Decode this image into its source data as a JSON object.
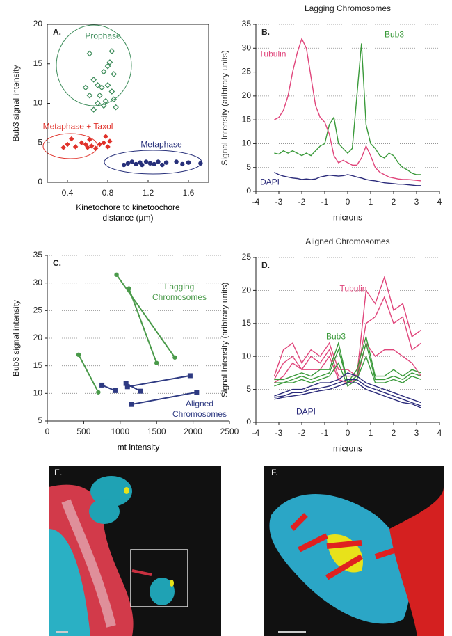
{
  "chart_data": [
    {
      "type": "scatter",
      "panel_label": "A.",
      "xlabel": "Kinetochore to kinetoochore distance (µm)",
      "ylabel": "Bub3 signal intensity",
      "xlim": [
        0.2,
        1.8
      ],
      "xticks": [
        0.4,
        0.8,
        1.2,
        1.6
      ],
      "ylim": [
        0,
        20
      ],
      "yticks": [
        0,
        5,
        10,
        15,
        20
      ],
      "series": [
        {
          "name": "Prophase",
          "color": "#3d8c5a",
          "marker": "diamond-open",
          "x": [
            0.62,
            0.84,
            0.82,
            0.8,
            0.76,
            0.66,
            0.86,
            0.7,
            0.58,
            0.74,
            0.8,
            0.84,
            0.62,
            0.72,
            0.78,
            0.86,
            0.7,
            0.76,
            0.88,
            0.66
          ],
          "values": [
            16.3,
            16.6,
            15.2,
            14.7,
            14.0,
            13.0,
            13.7,
            12.3,
            12.0,
            12.0,
            12.3,
            11.5,
            11.0,
            11.0,
            10.3,
            10.5,
            10.0,
            9.7,
            9.5,
            9.2
          ]
        },
        {
          "name": "Metaphase + Taxol",
          "color": "#e0312a",
          "marker": "diamond",
          "x": [
            0.36,
            0.4,
            0.44,
            0.48,
            0.54,
            0.58,
            0.6,
            0.62,
            0.64,
            0.68,
            0.72,
            0.76,
            0.78,
            0.8,
            0.82
          ],
          "values": [
            4.4,
            4.8,
            5.5,
            4.5,
            5.0,
            4.8,
            4.4,
            5.4,
            4.6,
            4.3,
            4.8,
            5.0,
            5.8,
            4.5,
            5.2
          ]
        },
        {
          "name": "Metaphase",
          "color": "#27307a",
          "marker": "circle",
          "x": [
            0.96,
            1.0,
            1.04,
            1.08,
            1.12,
            1.14,
            1.18,
            1.22,
            1.26,
            1.3,
            1.34,
            1.38,
            1.48,
            1.54,
            1.6,
            1.72
          ],
          "values": [
            2.2,
            2.4,
            2.6,
            2.3,
            2.5,
            2.2,
            2.6,
            2.4,
            2.3,
            2.6,
            2.2,
            2.5,
            2.6,
            2.3,
            2.5,
            2.4
          ]
        }
      ]
    },
    {
      "type": "line",
      "title": "Lagging Chromosomes",
      "panel_label": "B.",
      "xlabel": "microns",
      "ylabel": "Signal Intensity (aribtrary units)",
      "xlim": [
        -4,
        4
      ],
      "xticks": [
        -4,
        -3,
        -2,
        -1,
        0,
        1,
        2,
        3,
        4
      ],
      "ylim": [
        0,
        35
      ],
      "yticks": [
        0,
        5,
        10,
        15,
        20,
        25,
        30,
        35
      ],
      "grid": true,
      "x": [
        -3.2,
        -3.0,
        -2.8,
        -2.6,
        -2.4,
        -2.2,
        -2.0,
        -1.8,
        -1.6,
        -1.4,
        -1.2,
        -1.0,
        -0.8,
        -0.6,
        -0.4,
        -0.2,
        0,
        0.2,
        0.4,
        0.6,
        0.8,
        1.0,
        1.2,
        1.4,
        1.6,
        1.8,
        2.0,
        2.2,
        2.4,
        2.6,
        2.8,
        3.0,
        3.2
      ],
      "series": [
        {
          "name": "Tubulin",
          "color": "#e0457b",
          "values": [
            15,
            15.5,
            17,
            20,
            25,
            29,
            32,
            30,
            24,
            18,
            15.5,
            14.5,
            12,
            7.5,
            6,
            6.5,
            6,
            5.5,
            5.5,
            7,
            9.5,
            7.5,
            5,
            4,
            3.5,
            3,
            2.8,
            2.6,
            2.5,
            2.5,
            2.4,
            2.3,
            2.2
          ]
        },
        {
          "name": "Bub3",
          "color": "#3a9a3a",
          "values": [
            8,
            7.8,
            8.5,
            8,
            8.5,
            8,
            7.5,
            8,
            7.5,
            8.5,
            9.5,
            10,
            14,
            15.5,
            10,
            9,
            8,
            9,
            20,
            31,
            14,
            10,
            9,
            7.5,
            7,
            8,
            7.5,
            6,
            5,
            4.5,
            3.8,
            3.5,
            3.5
          ]
        },
        {
          "name": "DAPI",
          "color": "#2a2a7a",
          "values": [
            4,
            3.5,
            3.2,
            3,
            2.8,
            2.7,
            2.5,
            2.6,
            2.5,
            2.6,
            3,
            3.2,
            3.4,
            3.3,
            3.2,
            3.3,
            3.5,
            3.3,
            3,
            2.8,
            2.5,
            2.3,
            2.2,
            2,
            1.8,
            1.7,
            1.6,
            1.5,
            1.5,
            1.4,
            1.3,
            1.2,
            1.2
          ]
        }
      ]
    },
    {
      "type": "line",
      "panel_label": "C.",
      "xlabel": "mt intensity",
      "ylabel": "Bub3 signal intensity",
      "xlim": [
        0,
        2500
      ],
      "xticks": [
        0,
        500,
        1000,
        1500,
        2000,
        2500
      ],
      "ylim": [
        5,
        35
      ],
      "yticks": [
        5,
        10,
        15,
        20,
        25,
        30,
        35
      ],
      "grid": true,
      "series": [
        {
          "name": "Lagging Chromosomes",
          "color": "#4a9a4a",
          "marker": "circle",
          "x": [
            950,
            1750,
            null,
            1120,
            1500,
            null,
            430,
            700
          ],
          "values": [
            31.5,
            16.5,
            null,
            29,
            15.5,
            null,
            17,
            10.2
          ]
        },
        {
          "name": "Aligned Chromosomes",
          "color": "#2e3a82",
          "marker": "square",
          "x": [
            750,
            930,
            null,
            1080,
            1280,
            null,
            1100,
            1960,
            null,
            1150,
            2050
          ],
          "values": [
            11.5,
            10.5,
            null,
            11.8,
            10.4,
            null,
            11.2,
            13.2,
            null,
            8,
            10.2
          ]
        }
      ]
    },
    {
      "type": "line",
      "title": "Aligned Chromosomes",
      "panel_label": "D.",
      "xlabel": "microns",
      "ylabel": "Signal Intensity (aribtrary units)",
      "xlim": [
        -4,
        4
      ],
      "xticks": [
        -4,
        -3,
        -2,
        -1,
        0,
        1,
        2,
        3,
        4
      ],
      "ylim": [
        0,
        25
      ],
      "yticks": [
        0,
        5,
        10,
        15,
        20,
        25
      ],
      "grid": true,
      "x": [
        -3.2,
        -2.8,
        -2.4,
        -2.0,
        -1.6,
        -1.2,
        -0.8,
        -0.4,
        0,
        0.4,
        0.8,
        1.2,
        1.6,
        2.0,
        2.4,
        2.8,
        3.2
      ],
      "series": [
        {
          "name": "Tubulin",
          "color": "#e0457b",
          "values": [
            [
              7,
              11,
              12,
              9,
              11,
              10,
              12,
              8,
              8,
              7,
              20,
              18,
              22,
              17,
              18,
              13,
              14
            ],
            [
              6.5,
              9,
              10,
              8,
              10,
              9,
              11,
              7,
              7,
              7,
              15,
              16,
              19,
              15,
              16,
              11,
              12
            ],
            [
              6,
              7,
              9,
              8,
              8,
              8,
              10,
              6.5,
              6,
              6.5,
              12,
              10,
              11,
              11,
              10,
              9,
              7
            ]
          ]
        },
        {
          "name": "Bub3",
          "color": "#3a9a3a",
          "values": [
            [
              6.5,
              6.5,
              7,
              7.5,
              7,
              8,
              8,
              12,
              6,
              8,
              13,
              7,
              7,
              8,
              7,
              8,
              7.5
            ],
            [
              6,
              6,
              6.5,
              7,
              6.5,
              7,
              7.5,
              11,
              6,
              7,
              12,
              6.5,
              6.5,
              7,
              6.5,
              7.5,
              7
            ],
            [
              5.5,
              6,
              6,
              6.5,
              6,
              6.5,
              7,
              9,
              5.5,
              6.5,
              10,
              6,
              6,
              6.5,
              6,
              7,
              6.5
            ]
          ]
        },
        {
          "name": "DAPI",
          "color": "#2a2a7a",
          "values": [
            [
              4,
              4.5,
              5,
              5,
              5.5,
              6,
              6,
              6.5,
              7.5,
              7,
              6,
              5.5,
              5,
              4.5,
              4,
              3.5,
              3
            ],
            [
              3.8,
              4,
              4.5,
              4.5,
              5,
              5.2,
              5.5,
              6,
              6.5,
              6.5,
              5.5,
              5,
              4.5,
              4,
              3.5,
              3,
              2.5
            ],
            [
              3.5,
              3.8,
              4,
              4.2,
              4.5,
              4.8,
              5,
              5.5,
              6,
              6,
              5,
              4.5,
              4,
              3.5,
              3,
              2.8,
              2.2
            ]
          ]
        }
      ]
    }
  ],
  "images": [
    {
      "label": "E."
    },
    {
      "label": "F."
    }
  ]
}
